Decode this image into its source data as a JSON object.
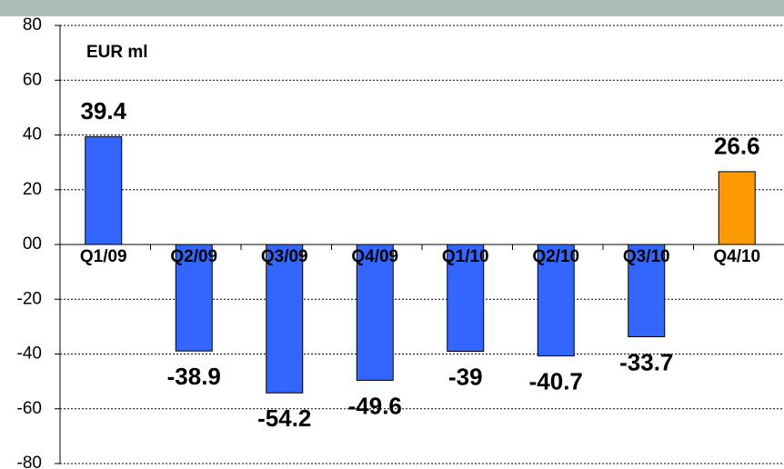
{
  "chart_data": {
    "type": "bar",
    "annotation": "EUR ml",
    "categories": [
      "Q1/09",
      "Q2/09",
      "Q3/09",
      "Q4/09",
      "Q1/10",
      "Q2/10",
      "Q3/10",
      "Q4/10"
    ],
    "values": [
      39.4,
      -38.9,
      -54.2,
      -49.6,
      -39.0,
      -40.7,
      -33.7,
      26.6
    ],
    "colors": [
      "#3366ff",
      "#3366ff",
      "#3366ff",
      "#3366ff",
      "#3366ff",
      "#3366ff",
      "#3366ff",
      "#ff9900"
    ],
    "ylim": [
      -80,
      80
    ],
    "yticks": [
      -80,
      -60,
      -40,
      -20,
      {
        "value": 0,
        "label": "00"
      },
      20,
      40,
      60,
      80
    ],
    "grid": true
  }
}
